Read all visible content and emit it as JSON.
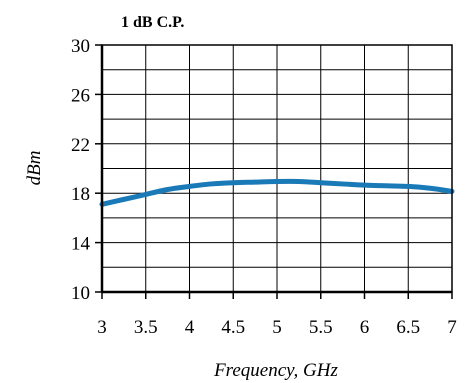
{
  "chart_data": {
    "type": "line",
    "title": "1 dB C.P.",
    "xlabel": "Frequency, GHz",
    "ylabel": "dBm",
    "xlim": [
      3,
      7
    ],
    "ylim": [
      10,
      30
    ],
    "x_ticks": [
      3,
      3.5,
      4,
      4.5,
      5,
      5.5,
      6,
      6.5,
      7
    ],
    "x_tick_labels": [
      "3",
      "3.5",
      "4",
      "4.5",
      "5",
      "5.5",
      "6",
      "6.5",
      "7"
    ],
    "y_ticks": [
      10,
      14,
      18,
      22,
      26,
      30
    ],
    "y_tick_labels": [
      "10",
      "14",
      "18",
      "22",
      "26",
      "30"
    ],
    "y_minor_grid_step": 2,
    "grid": true,
    "line_color": "#1a7ab8",
    "series": [
      {
        "x": [
          3.0,
          3.25,
          3.5,
          3.75,
          4.0,
          4.25,
          4.5,
          4.75,
          5.0,
          5.25,
          5.5,
          5.75,
          6.0,
          6.25,
          6.5,
          6.75,
          7.0
        ],
        "y": [
          17.1,
          17.5,
          17.9,
          18.3,
          18.55,
          18.75,
          18.85,
          18.9,
          18.95,
          18.95,
          18.85,
          18.75,
          18.65,
          18.6,
          18.55,
          18.4,
          18.15
        ]
      }
    ]
  }
}
